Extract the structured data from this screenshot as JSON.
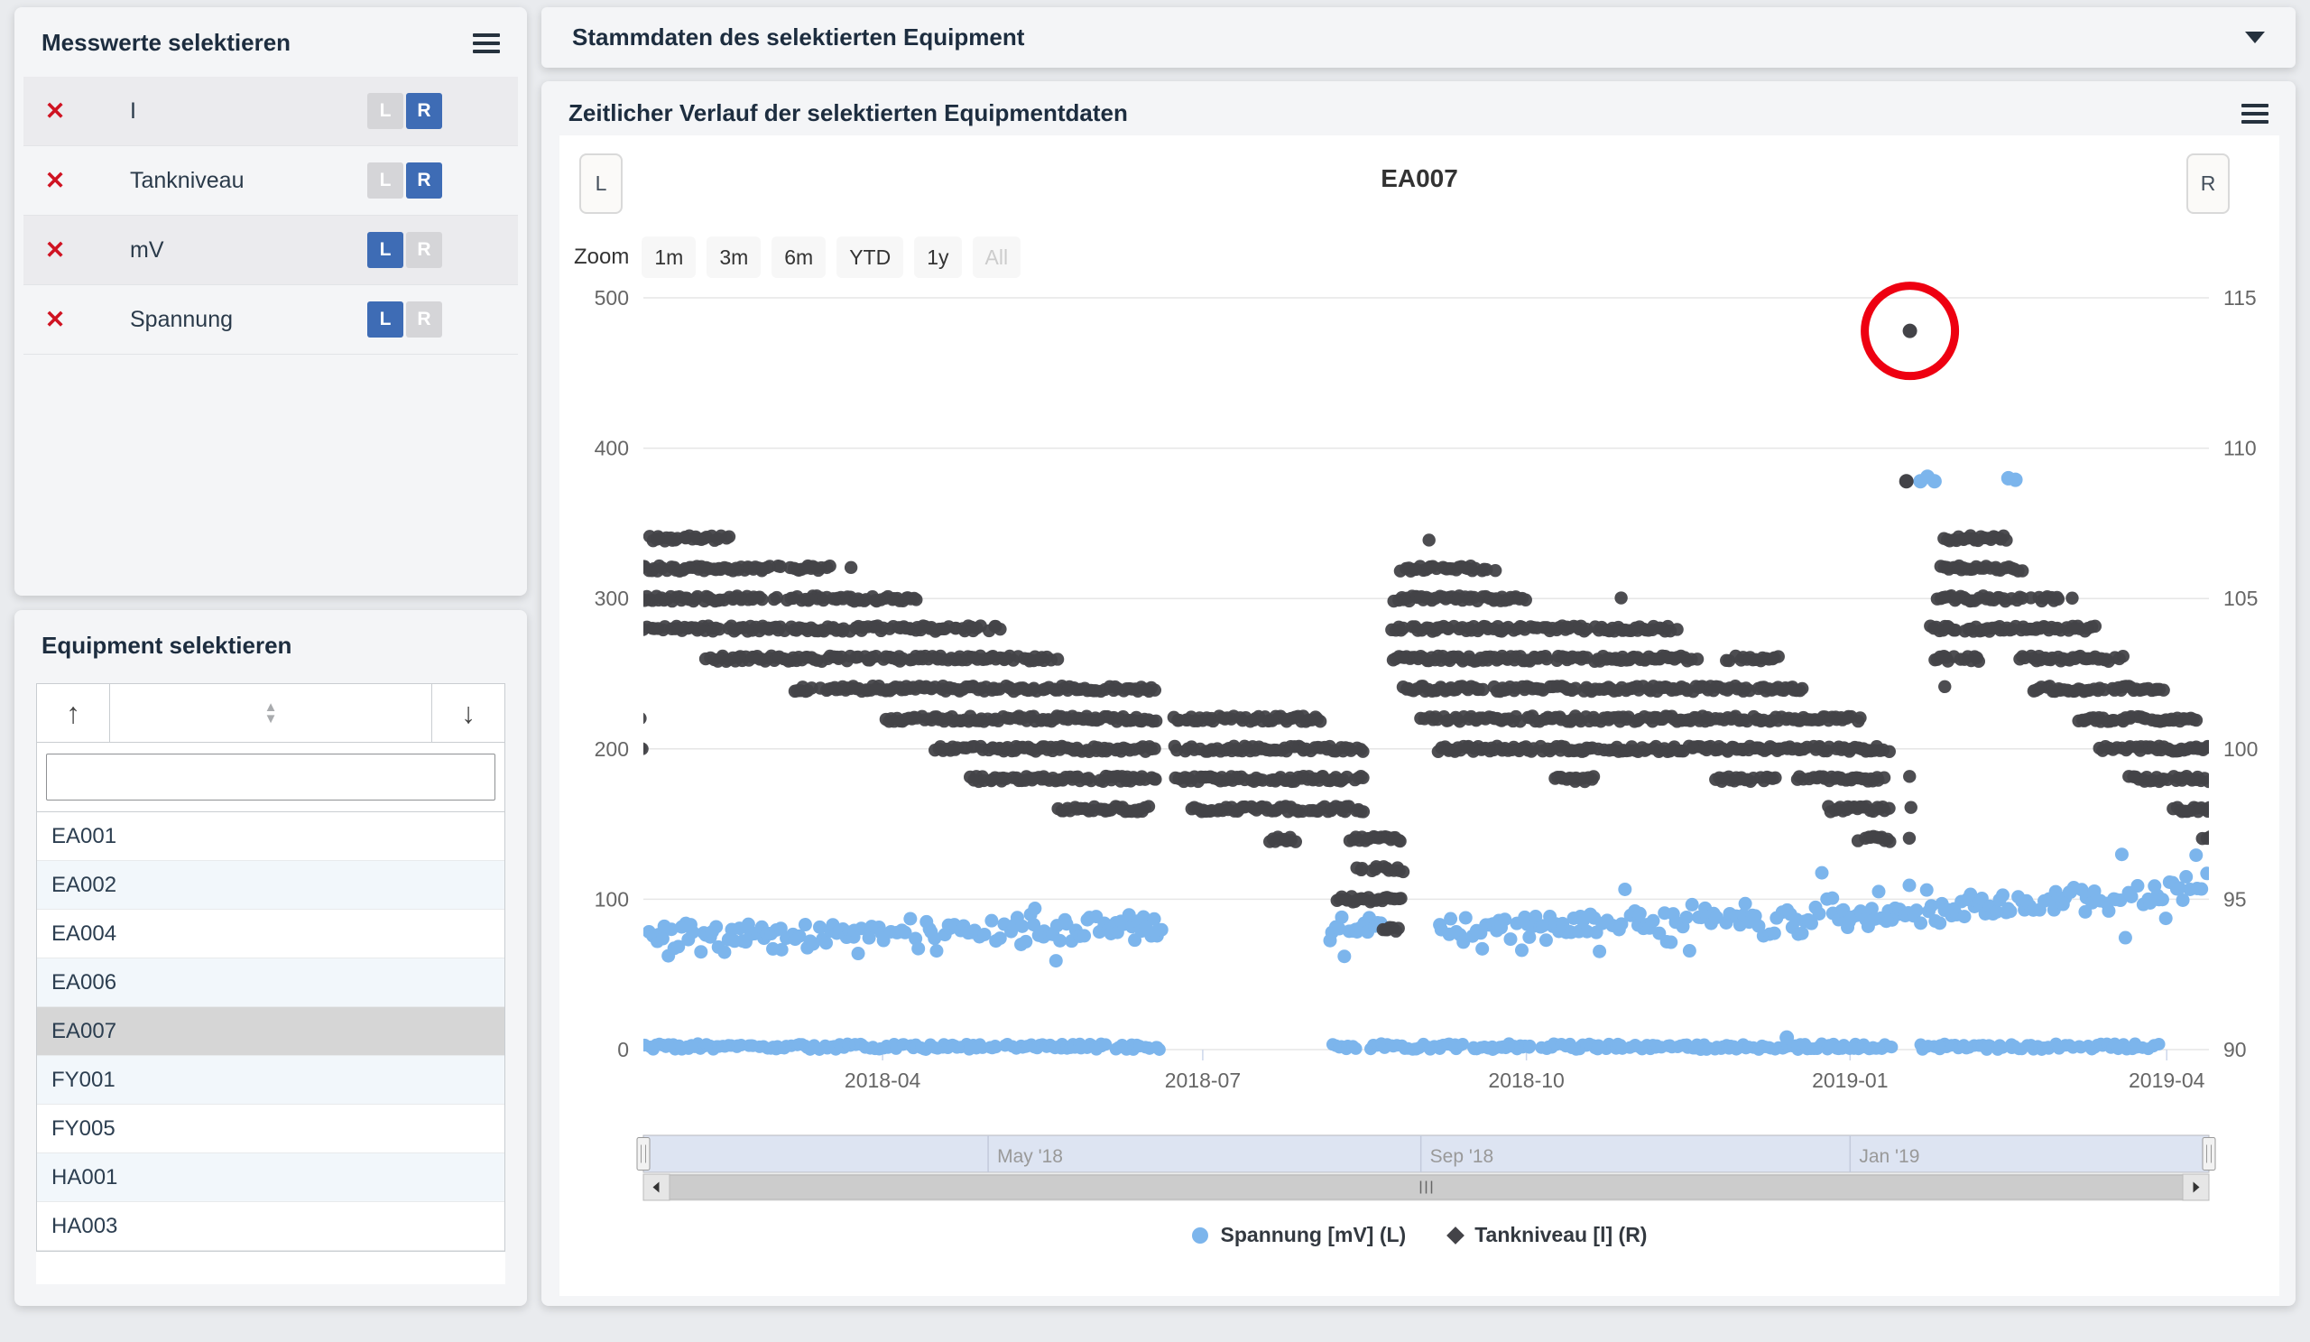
{
  "measure_panel": {
    "title": "Messwerte selektieren",
    "remove_glyph": "✕",
    "toggle": {
      "left_label": "L",
      "right_label": "R"
    },
    "items": [
      {
        "label": "I",
        "left": false,
        "right": true
      },
      {
        "label": "Tankniveau",
        "left": false,
        "right": true
      },
      {
        "label": "mV",
        "left": true,
        "right": false
      },
      {
        "label": "Spannung",
        "left": true,
        "right": false
      }
    ]
  },
  "equipment_panel": {
    "title": "Equipment selektieren",
    "move_up_glyph": "↑",
    "move_down_glyph": "↓",
    "sort_glyphs": {
      "asc": "▲",
      "desc": "▼"
    },
    "filter": {
      "value": "",
      "placeholder": ""
    },
    "items": [
      "EA001",
      "EA002",
      "EA004",
      "EA006",
      "EA007",
      "FY001",
      "FY005",
      "HA001",
      "HA003"
    ],
    "selected": "EA007"
  },
  "stammdaten_panel": {
    "title": "Stammdaten des selektierten Equipment"
  },
  "chart_panel": {
    "title": "Zeitlicher Verlauf der selektierten Equipmentdaten",
    "left_axis_button": "L",
    "right_axis_button": "R",
    "zoom_label": "Zoom",
    "zoom_buttons": [
      "1m",
      "3m",
      "6m",
      "YTD",
      "1y",
      "All"
    ],
    "disabled_zoom_button": "All"
  },
  "chart_data": {
    "type": "scatter",
    "title": "EA007",
    "x_axis": {
      "tick_labels": [
        "2018-04",
        "2018-07",
        "2018-10",
        "2019-01",
        "2019-04"
      ],
      "tick_days": [
        0,
        91,
        183,
        275,
        365
      ],
      "range_days": [
        -68,
        377
      ],
      "day0_date": "2018-04-01"
    },
    "left_axis": {
      "ticks": [
        "0",
        "100",
        "200",
        "300",
        "400",
        "500"
      ],
      "min": 0,
      "max": 500
    },
    "right_axis": {
      "ticks": [
        "90",
        "95",
        "100",
        "105",
        "110",
        "115"
      ],
      "min": 90,
      "max": 115
    },
    "grid": true,
    "legend_position": "bottom",
    "legend": [
      {
        "name": "Spannung [mV] (L)",
        "marker": "circle",
        "color": "#7cb5ec"
      },
      {
        "name": "Tankniveau [l] (R)",
        "marker": "diamond",
        "color": "#434348"
      }
    ],
    "navigator": {
      "labels": [
        "May '18",
        "Sep '18",
        "Jan '19"
      ],
      "tick_days": [
        30,
        153,
        275
      ]
    },
    "series": {
      "tankniveau": {
        "color": "#434348",
        "axis": "right",
        "runs": [
          [
            107,
            -66,
            -43
          ],
          [
            106,
            -69,
            -29
          ],
          [
            106,
            -26,
            -14
          ],
          [
            106,
            -9,
            -8
          ],
          [
            105,
            -70,
            -29
          ],
          [
            105,
            -27,
            10
          ],
          [
            104,
            -68,
            -28
          ],
          [
            104,
            -26,
            34
          ],
          [
            103,
            -50,
            50
          ],
          [
            102,
            -25,
            78
          ],
          [
            101,
            -69,
            -68
          ],
          [
            100,
            -69,
            -68
          ],
          [
            101,
            1,
            78
          ],
          [
            101,
            83,
            125
          ],
          [
            100,
            15,
            78
          ],
          [
            100,
            83,
            137
          ],
          [
            99,
            25,
            78
          ],
          [
            99,
            83,
            137
          ],
          [
            98,
            50,
            76
          ],
          [
            98,
            88,
            137
          ],
          [
            97,
            110,
            119
          ],
          [
            97,
            133,
            148
          ],
          [
            96,
            135,
            148
          ],
          [
            95,
            129,
            148
          ],
          [
            94,
            142,
            147
          ],
          [
            107,
            155,
            156
          ],
          [
            106,
            147,
            175
          ],
          [
            105,
            145,
            183
          ],
          [
            105,
            210,
            211
          ],
          [
            104,
            145,
            226
          ],
          [
            103,
            145,
            232
          ],
          [
            103,
            240,
            256
          ],
          [
            102,
            148,
            262
          ],
          [
            101,
            153,
            278
          ],
          [
            100,
            158,
            287
          ],
          [
            99,
            191,
            203
          ],
          [
            99,
            237,
            254
          ],
          [
            99,
            260,
            285
          ],
          [
            98,
            269,
            286
          ],
          [
            97,
            277,
            287
          ],
          [
            99,
            292,
            292
          ],
          [
            98,
            292,
            292
          ],
          [
            97,
            292,
            292
          ],
          [
            107,
            302,
            320
          ],
          [
            106,
            301,
            325
          ],
          [
            105,
            300,
            335
          ],
          [
            105,
            338,
            338
          ],
          [
            104,
            298,
            345
          ],
          [
            103,
            299,
            312
          ],
          [
            103,
            323,
            353
          ],
          [
            102,
            302,
            302
          ],
          [
            102,
            327,
            364
          ],
          [
            101,
            340,
            374
          ],
          [
            100,
            346,
            378
          ],
          [
            99,
            354,
            378
          ],
          [
            98,
            367,
            378
          ],
          [
            97,
            375,
            378
          ]
        ],
        "outliers": [
          [
            291,
            108.9
          ],
          [
            292,
            113.9
          ]
        ]
      },
      "spannung": {
        "color": "#7cb5ec",
        "axis": "left",
        "trend": [
          [
            -68,
            76
          ],
          [
            -40,
            74
          ],
          [
            -10,
            78
          ],
          [
            20,
            78
          ],
          [
            50,
            80
          ],
          [
            80,
            82
          ],
          [
            127,
            76
          ],
          [
            142,
            84
          ],
          [
            158,
            80
          ],
          [
            190,
            84
          ],
          [
            220,
            86
          ],
          [
            250,
            90
          ],
          [
            280,
            92
          ],
          [
            305,
            93
          ],
          [
            330,
            97
          ],
          [
            350,
            101
          ],
          [
            365,
            106
          ],
          [
            377,
            111
          ]
        ],
        "spread": 11,
        "segments": [
          [
            -68,
            80
          ],
          [
            127,
            142
          ],
          [
            158,
            377
          ]
        ],
        "zero_runs": [
          [
            -68,
            80
          ],
          [
            128,
            287
          ],
          [
            295,
            363
          ]
        ],
        "zero_level_max": 4,
        "outliers": [
          [
            295,
            378
          ],
          [
            297,
            381
          ],
          [
            299,
            378
          ],
          [
            320,
            380
          ],
          [
            322,
            379
          ],
          [
            257,
            8
          ]
        ]
      }
    },
    "annotation_circle": {
      "day": 292,
      "value": 113.9,
      "radius": 50,
      "color": "#ee0011",
      "stroke_width": 9
    }
  }
}
